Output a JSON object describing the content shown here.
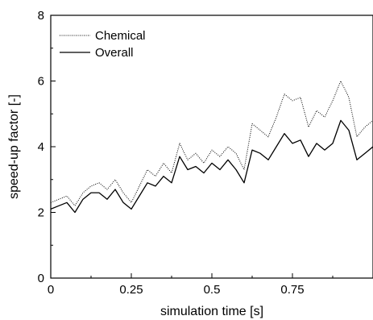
{
  "chart_data": {
    "type": "line",
    "title": "",
    "xlabel": "simulation time [s]",
    "ylabel": "speed-up factor [-]",
    "xlim": [
      0,
      1.0
    ],
    "ylim": [
      0,
      8
    ],
    "grid": false,
    "legend_position": "top-left",
    "x_ticks": [
      0,
      0.25,
      0.5,
      0.75
    ],
    "x_tick_labels": [
      "0",
      "0.25",
      "0.5",
      "0.75"
    ],
    "y_ticks": [
      0,
      2,
      4,
      6,
      8
    ],
    "y_tick_labels": [
      "0",
      "2",
      "4",
      "6",
      "8"
    ],
    "x": [
      0.0,
      0.025,
      0.05,
      0.075,
      0.1,
      0.125,
      0.15,
      0.175,
      0.2,
      0.225,
      0.25,
      0.275,
      0.3,
      0.325,
      0.35,
      0.375,
      0.4,
      0.425,
      0.45,
      0.475,
      0.5,
      0.525,
      0.55,
      0.575,
      0.6,
      0.625,
      0.65,
      0.675,
      0.7,
      0.725,
      0.75,
      0.775,
      0.8,
      0.825,
      0.85,
      0.875,
      0.9,
      0.925,
      0.95,
      0.975,
      1.0
    ],
    "series": [
      {
        "name": "Chemical",
        "style": "dotted",
        "values": [
          2.3,
          2.4,
          2.5,
          2.2,
          2.6,
          2.8,
          2.9,
          2.7,
          3.0,
          2.6,
          2.3,
          2.8,
          3.3,
          3.1,
          3.5,
          3.2,
          4.1,
          3.6,
          3.8,
          3.5,
          3.9,
          3.7,
          4.0,
          3.8,
          3.3,
          4.7,
          4.5,
          4.3,
          4.9,
          5.6,
          5.4,
          5.5,
          4.6,
          5.1,
          4.9,
          5.4,
          6.0,
          5.5,
          4.3,
          4.6,
          4.8
        ]
      },
      {
        "name": "Overall",
        "style": "solid",
        "values": [
          2.1,
          2.2,
          2.3,
          2.0,
          2.4,
          2.6,
          2.6,
          2.4,
          2.7,
          2.3,
          2.1,
          2.5,
          2.9,
          2.8,
          3.1,
          2.9,
          3.7,
          3.3,
          3.4,
          3.2,
          3.5,
          3.3,
          3.6,
          3.3,
          2.9,
          3.9,
          3.8,
          3.6,
          4.0,
          4.4,
          4.1,
          4.2,
          3.7,
          4.1,
          3.9,
          4.1,
          4.8,
          4.5,
          3.6,
          3.8,
          4.0
        ]
      }
    ]
  }
}
